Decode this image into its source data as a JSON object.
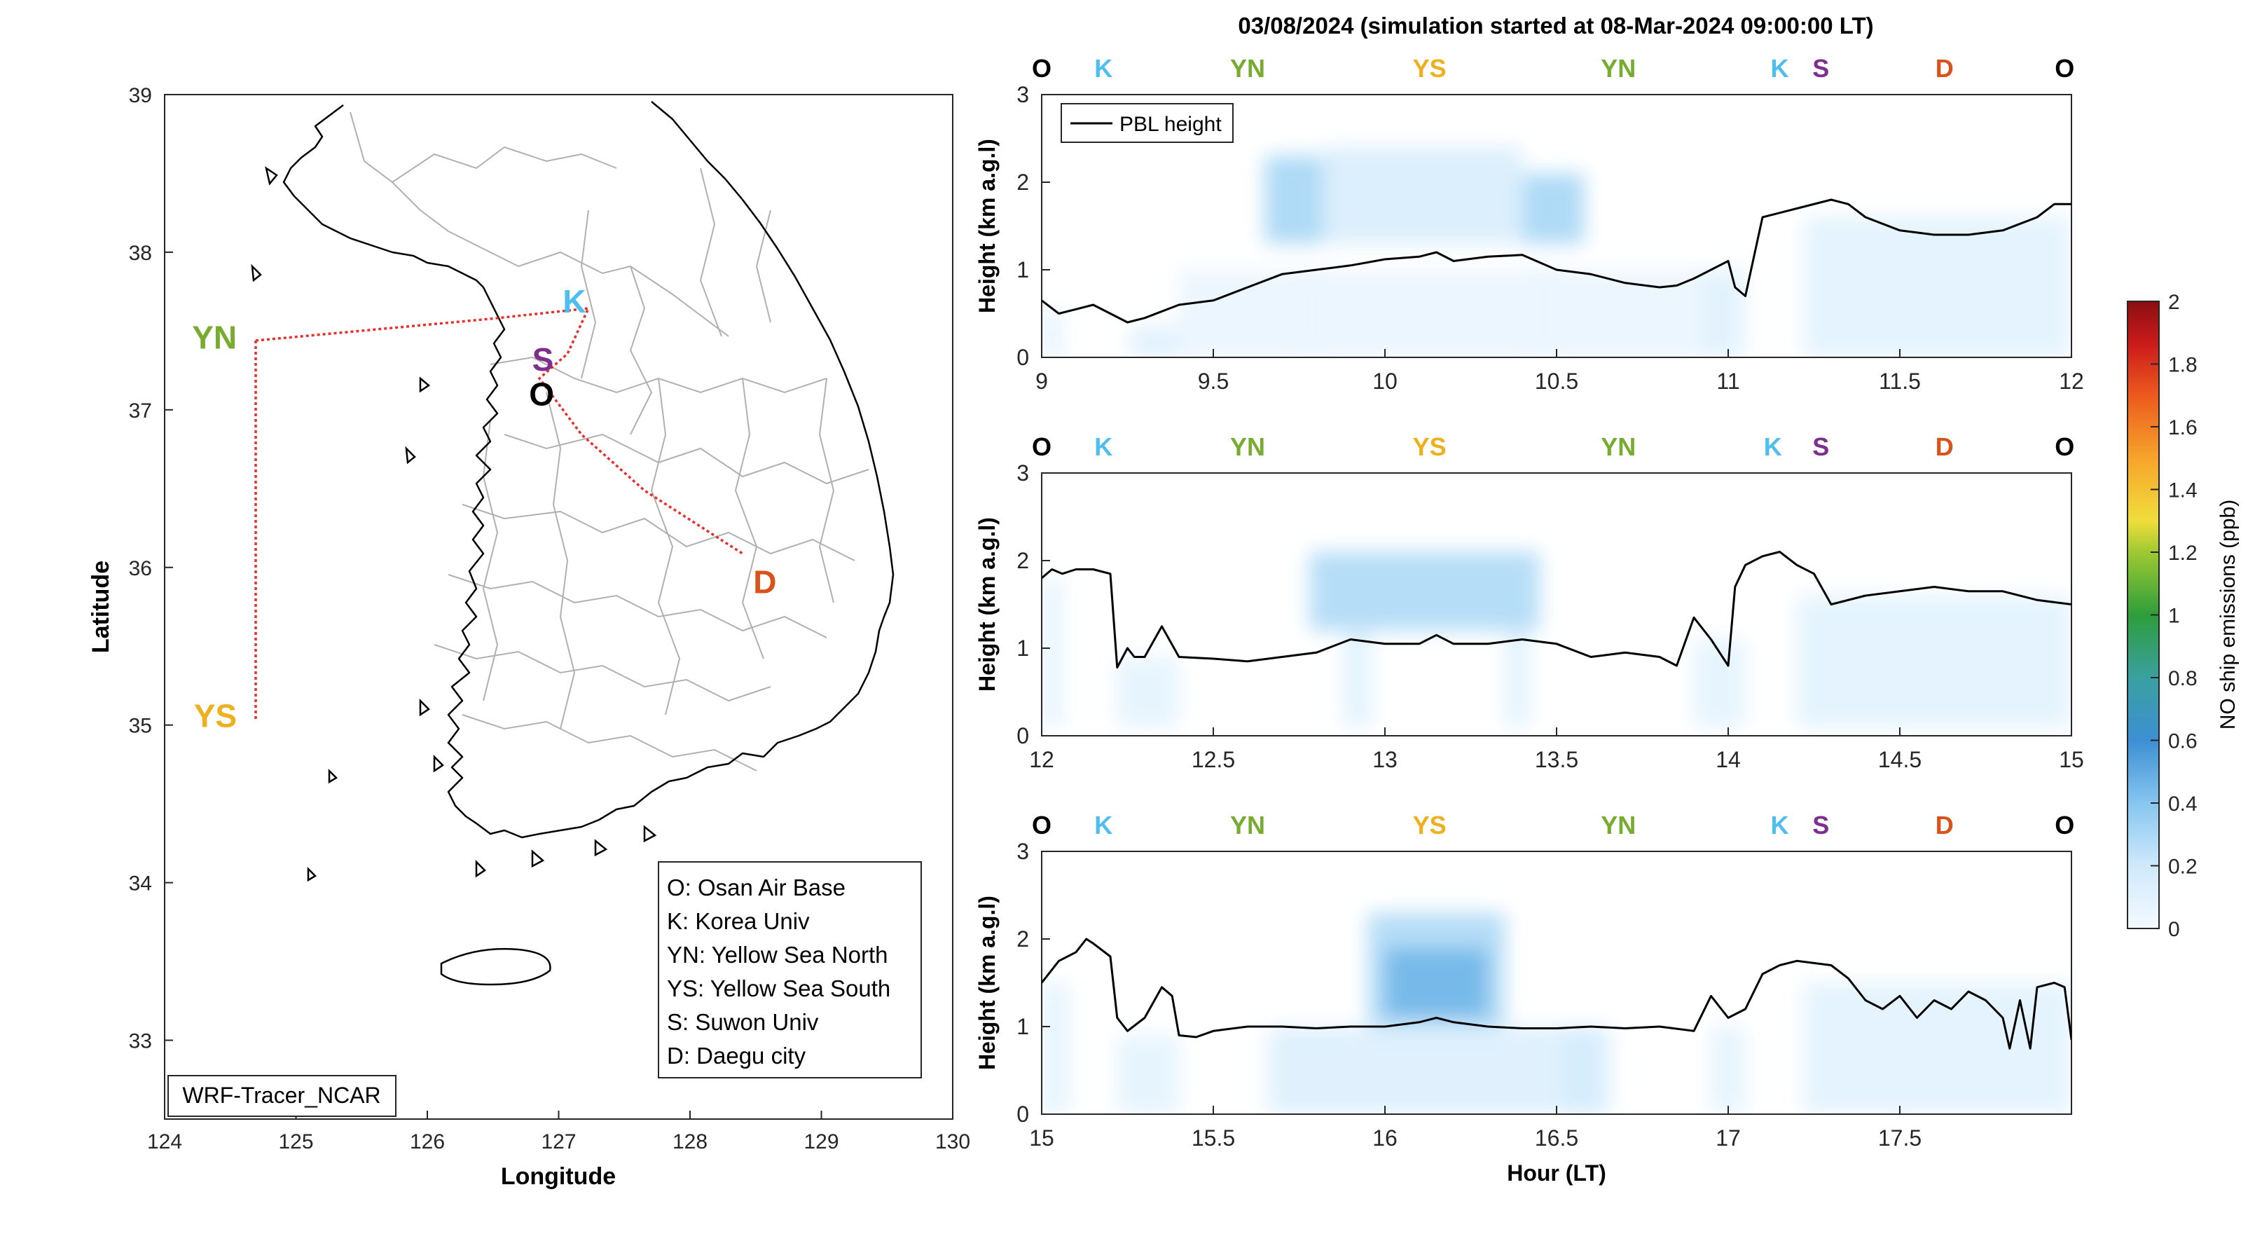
{
  "figure": {
    "title": "03/08/2024 (simulation started at 08-Mar-2024 09:00:00 LT)",
    "xlabel_time": "Hour (LT)"
  },
  "colors": {
    "O": "#000000",
    "K": "#4DBEEE",
    "YN": "#77AC30",
    "YS": "#EDB120",
    "S": "#7E2F8E",
    "D": "#D95319",
    "route": "#e8302a",
    "pbl": "#000000"
  },
  "map": {
    "xlabel": "Longitude",
    "ylabel": "Latitude",
    "xticks": [
      "124",
      "125",
      "126",
      "127",
      "128",
      "129",
      "130"
    ],
    "yticks": [
      "33",
      "34",
      "35",
      "36",
      "37",
      "38",
      "39"
    ],
    "xlim": [
      124,
      130
    ],
    "ylim": [
      32.5,
      39
    ],
    "tag": "WRF-Tracer_NCAR",
    "sites": [
      {
        "code": "O",
        "lon": 126.87,
        "lat": 37.09
      },
      {
        "code": "K",
        "lon": 127.12,
        "lat": 37.68
      },
      {
        "code": "YN",
        "lon": 124.55,
        "lat": 37.45
      },
      {
        "code": "YS",
        "lon": 124.55,
        "lat": 35.05
      },
      {
        "code": "S",
        "lon": 126.88,
        "lat": 37.31
      },
      {
        "code": "D",
        "lon": 128.57,
        "lat": 35.9
      }
    ],
    "legend": [
      "O: Osan Air Base",
      "K: Korea Univ",
      "YN: Yellow Sea North",
      "YS: Yellow Sea South",
      "S: Suwon Univ",
      "D: Daegu city"
    ]
  },
  "colorbar": {
    "label": "NO ship emissions (ppb)",
    "ticks": [
      "0",
      "0.2",
      "0.4",
      "0.6",
      "0.8",
      "1",
      "1.2",
      "1.4",
      "1.6",
      "1.8",
      "2"
    ],
    "range": [
      0,
      2
    ]
  },
  "chart_data": [
    {
      "type": "line",
      "xlim": [
        9,
        12
      ],
      "ylim": [
        0,
        3
      ],
      "xticks": [
        "9",
        "9.5",
        "10",
        "10.5",
        "11",
        "11.5",
        "12"
      ],
      "yticks": [
        "0",
        "1",
        "2",
        "3"
      ],
      "ylabel": "Height (km a.g.l)",
      "legend": "PBL height",
      "route_labels": [
        {
          "code": "O",
          "x": 9.0
        },
        {
          "code": "K",
          "x": 9.18
        },
        {
          "code": "YN",
          "x": 9.6
        },
        {
          "code": "YS",
          "x": 10.13
        },
        {
          "code": "YN",
          "x": 10.68
        },
        {
          "code": "K",
          "x": 11.15
        },
        {
          "code": "S",
          "x": 11.27
        },
        {
          "code": "D",
          "x": 11.63
        },
        {
          "code": "O",
          "x": 11.98
        }
      ],
      "series": [
        {
          "name": "PBL height",
          "x": [
            9.0,
            9.05,
            9.1,
            9.15,
            9.2,
            9.25,
            9.3,
            9.4,
            9.5,
            9.6,
            9.7,
            9.8,
            9.9,
            10.0,
            10.1,
            10.15,
            10.2,
            10.3,
            10.4,
            10.5,
            10.6,
            10.7,
            10.8,
            10.85,
            10.9,
            10.95,
            11.0,
            11.02,
            11.05,
            11.1,
            11.2,
            11.3,
            11.35,
            11.4,
            11.5,
            11.6,
            11.7,
            11.8,
            11.9,
            11.95,
            12.0
          ],
          "y": [
            0.65,
            0.5,
            0.55,
            0.6,
            0.5,
            0.4,
            0.45,
            0.6,
            0.65,
            0.8,
            0.95,
            1.0,
            1.05,
            1.12,
            1.15,
            1.2,
            1.1,
            1.15,
            1.17,
            1.0,
            0.95,
            0.85,
            0.8,
            0.82,
            0.9,
            1.0,
            1.1,
            0.8,
            0.7,
            1.6,
            1.7,
            1.8,
            1.75,
            1.6,
            1.45,
            1.4,
            1.4,
            1.45,
            1.6,
            1.75,
            1.75
          ]
        }
      ],
      "tracer": [
        {
          "x0": 9.0,
          "x1": 9.06,
          "y0": 0.0,
          "y1": 0.55,
          "v": 0.08
        },
        {
          "x0": 9.26,
          "x1": 9.4,
          "y0": 0.0,
          "y1": 0.35,
          "v": 0.12
        },
        {
          "x0": 9.65,
          "x1": 9.82,
          "y0": 1.3,
          "y1": 2.3,
          "v": 0.3
        },
        {
          "x0": 9.82,
          "x1": 10.4,
          "y0": 1.3,
          "y1": 2.4,
          "v": 0.14
        },
        {
          "x0": 10.4,
          "x1": 10.58,
          "y0": 1.3,
          "y1": 2.1,
          "v": 0.3
        },
        {
          "x0": 9.75,
          "x1": 9.82,
          "y0": 0.0,
          "y1": 1.0,
          "v": 0.16
        },
        {
          "x0": 10.42,
          "x1": 10.5,
          "y0": 0.0,
          "y1": 1.0,
          "v": 0.16
        },
        {
          "x0": 9.4,
          "x1": 11.0,
          "y0": 0.0,
          "y1": 1.0,
          "v": 0.05
        },
        {
          "x0": 10.92,
          "x1": 11.05,
          "y0": 0.0,
          "y1": 1.0,
          "v": 0.1
        },
        {
          "x0": 11.22,
          "x1": 12.0,
          "y0": 0.0,
          "y1": 1.6,
          "v": 0.09
        }
      ]
    },
    {
      "type": "line",
      "xlim": [
        12,
        15
      ],
      "ylim": [
        0,
        3
      ],
      "xticks": [
        "12",
        "12.5",
        "13",
        "13.5",
        "14",
        "14.5",
        "15"
      ],
      "yticks": [
        "0",
        "1",
        "2",
        "3"
      ],
      "ylabel": "Height (km a.g.l)",
      "route_labels": [
        {
          "code": "O",
          "x": 12.0
        },
        {
          "code": "K",
          "x": 12.18
        },
        {
          "code": "YN",
          "x": 12.6
        },
        {
          "code": "YS",
          "x": 13.13
        },
        {
          "code": "YN",
          "x": 13.68
        },
        {
          "code": "K",
          "x": 14.13
        },
        {
          "code": "S",
          "x": 14.27
        },
        {
          "code": "D",
          "x": 14.63
        },
        {
          "code": "O",
          "x": 14.98
        }
      ],
      "series": [
        {
          "name": "PBL height",
          "x": [
            12.0,
            12.03,
            12.06,
            12.1,
            12.15,
            12.2,
            12.22,
            12.25,
            12.27,
            12.3,
            12.35,
            12.4,
            12.5,
            12.6,
            12.7,
            12.8,
            12.9,
            13.0,
            13.1,
            13.15,
            13.2,
            13.3,
            13.4,
            13.5,
            13.6,
            13.7,
            13.8,
            13.85,
            13.9,
            13.95,
            14.0,
            14.02,
            14.05,
            14.1,
            14.15,
            14.2,
            14.25,
            14.3,
            14.4,
            14.5,
            14.6,
            14.7,
            14.8,
            14.9,
            15.0
          ],
          "y": [
            1.8,
            1.9,
            1.85,
            1.9,
            1.9,
            1.85,
            0.78,
            1.0,
            0.9,
            0.9,
            1.25,
            0.9,
            0.88,
            0.85,
            0.9,
            0.95,
            1.1,
            1.05,
            1.05,
            1.15,
            1.05,
            1.05,
            1.1,
            1.05,
            0.9,
            0.95,
            0.9,
            0.8,
            1.35,
            1.1,
            0.8,
            1.7,
            1.95,
            2.05,
            2.1,
            1.95,
            1.85,
            1.5,
            1.6,
            1.65,
            1.7,
            1.65,
            1.65,
            1.55,
            1.5
          ]
        }
      ],
      "tracer": [
        {
          "x0": 12.0,
          "x1": 12.06,
          "y0": 0.1,
          "y1": 1.8,
          "v": 0.08
        },
        {
          "x0": 12.22,
          "x1": 12.4,
          "y0": 0.1,
          "y1": 0.9,
          "v": 0.08
        },
        {
          "x0": 12.78,
          "x1": 13.45,
          "y0": 1.2,
          "y1": 2.1,
          "v": 0.28
        },
        {
          "x0": 12.88,
          "x1": 12.96,
          "y0": 0.1,
          "y1": 1.2,
          "v": 0.1
        },
        {
          "x0": 13.35,
          "x1": 13.42,
          "y0": 0.1,
          "y1": 1.2,
          "v": 0.1
        },
        {
          "x0": 13.9,
          "x1": 14.05,
          "y0": 0.1,
          "y1": 1.1,
          "v": 0.08
        },
        {
          "x0": 14.2,
          "x1": 15.0,
          "y0": 0.1,
          "y1": 1.6,
          "v": 0.09
        }
      ]
    },
    {
      "type": "line",
      "xlim": [
        15,
        18
      ],
      "ylim": [
        0,
        3
      ],
      "xticks": [
        "15",
        "15.5",
        "16",
        "16.5",
        "17",
        "17.5"
      ],
      "yticks": [
        "0",
        "1",
        "2",
        "3"
      ],
      "ylabel": "Height (km a.g.l)",
      "xlabel": "Hour (LT)",
      "route_labels": [
        {
          "code": "O",
          "x": 15.0
        },
        {
          "code": "K",
          "x": 15.18
        },
        {
          "code": "YN",
          "x": 15.6
        },
        {
          "code": "YS",
          "x": 16.13
        },
        {
          "code": "YN",
          "x": 16.68
        },
        {
          "code": "K",
          "x": 17.15
        },
        {
          "code": "S",
          "x": 17.27
        },
        {
          "code": "D",
          "x": 17.63
        },
        {
          "code": "O",
          "x": 17.98
        }
      ],
      "series": [
        {
          "name": "PBL height",
          "x": [
            15.0,
            15.05,
            15.1,
            15.13,
            15.15,
            15.2,
            15.22,
            15.25,
            15.3,
            15.35,
            15.38,
            15.4,
            15.45,
            15.5,
            15.6,
            15.7,
            15.8,
            15.9,
            16.0,
            16.1,
            16.15,
            16.2,
            16.3,
            16.4,
            16.5,
            16.6,
            16.7,
            16.8,
            16.9,
            16.95,
            17.0,
            17.05,
            17.1,
            17.15,
            17.2,
            17.3,
            17.35,
            17.4,
            17.45,
            17.5,
            17.55,
            17.6,
            17.65,
            17.7,
            17.75,
            17.8,
            17.82,
            17.85,
            17.88,
            17.9,
            17.95,
            17.98,
            18.0
          ],
          "y": [
            1.5,
            1.75,
            1.85,
            2.0,
            1.95,
            1.8,
            1.1,
            0.95,
            1.1,
            1.45,
            1.35,
            0.9,
            0.88,
            0.95,
            1.0,
            1.0,
            0.98,
            1.0,
            1.0,
            1.05,
            1.1,
            1.05,
            1.0,
            0.98,
            0.98,
            1.0,
            0.98,
            1.0,
            0.95,
            1.35,
            1.1,
            1.2,
            1.6,
            1.7,
            1.75,
            1.7,
            1.55,
            1.3,
            1.2,
            1.35,
            1.1,
            1.3,
            1.2,
            1.4,
            1.3,
            1.1,
            0.75,
            1.3,
            0.75,
            1.45,
            1.5,
            1.45,
            0.85
          ]
        }
      ],
      "tracer": [
        {
          "x0": 15.0,
          "x1": 15.08,
          "y0": 0.0,
          "y1": 1.5,
          "v": 0.08
        },
        {
          "x0": 15.22,
          "x1": 15.4,
          "y0": 0.0,
          "y1": 0.9,
          "v": 0.08
        },
        {
          "x0": 15.95,
          "x1": 16.35,
          "y0": 0.9,
          "y1": 2.3,
          "v": 0.28
        },
        {
          "x0": 16.0,
          "x1": 16.3,
          "y0": 1.1,
          "y1": 1.9,
          "v": 0.45
        },
        {
          "x0": 15.66,
          "x1": 16.66,
          "y0": 0.0,
          "y1": 1.0,
          "v": 0.12
        },
        {
          "x0": 16.52,
          "x1": 16.62,
          "y0": 0.0,
          "y1": 1.0,
          "v": 0.16
        },
        {
          "x0": 16.95,
          "x1": 17.05,
          "y0": 0.0,
          "y1": 1.0,
          "v": 0.08
        },
        {
          "x0": 17.22,
          "x1": 18.0,
          "y0": 0.0,
          "y1": 1.5,
          "v": 0.09
        }
      ]
    }
  ]
}
